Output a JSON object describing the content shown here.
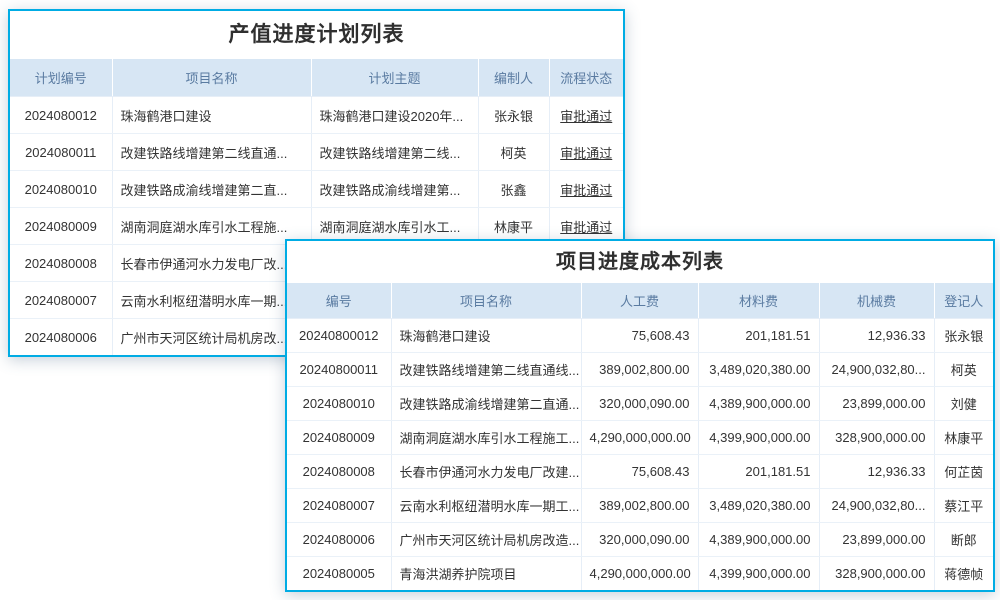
{
  "colors": {
    "card_border": "#00ace4",
    "header_bg": "#d7e6f4",
    "header_text": "#5a7ba1",
    "link_blue": "#3e96e2",
    "status_green": "#3aa83e",
    "money_text": "#333333"
  },
  "plan_table": {
    "title": "产值进度计划列表",
    "columns": [
      "计划编号",
      "项目名称",
      "计划主题",
      "编制人",
      "流程状态"
    ],
    "rows": [
      [
        "2024080012",
        "珠海鹤港口建设",
        "珠海鹤港口建设2020年...",
        "张永银",
        "审批通过"
      ],
      [
        "2024080011",
        "改建铁路线增建第二线直通...",
        "改建铁路线增建第二线...",
        "柯英",
        "审批通过"
      ],
      [
        "2024080010",
        "改建铁路成渝线增建第二直...",
        "改建铁路成渝线增建第...",
        "张鑫",
        "审批通过"
      ],
      [
        "2024080009",
        "湖南洞庭湖水库引水工程施...",
        "湖南洞庭湖水库引水工...",
        "林康平",
        "审批通过"
      ],
      [
        "2024080008",
        "长春市伊通河水力发电厂改...",
        "",
        "",
        ""
      ],
      [
        "2024080007",
        "云南水利枢纽潜明水库一期...",
        "",
        "",
        ""
      ],
      [
        "2024080006",
        "广州市天河区统计局机房改...",
        "",
        "",
        ""
      ]
    ]
  },
  "cost_table": {
    "title": "项目进度成本列表",
    "columns": [
      "编号",
      "项目名称",
      "人工费",
      "材料费",
      "机械费",
      "登记人"
    ],
    "rows": [
      [
        "20240800012",
        "珠海鹤港口建设",
        "75,608.43",
        "201,181.51",
        "12,936.33",
        "张永银"
      ],
      [
        "20240800011",
        "改建铁路线增建第二线直通线...",
        "389,002,800.00",
        "3,489,020,380.00",
        "24,900,032,80...",
        "柯英"
      ],
      [
        "2024080010",
        "改建铁路成渝线增建第二直通...",
        "320,000,090.00",
        "4,389,900,000.00",
        "23,899,000.00",
        "刘健"
      ],
      [
        "2024080009",
        "湖南洞庭湖水库引水工程施工...",
        "4,290,000,000.00",
        "4,399,900,000.00",
        "328,900,000.00",
        "林康平"
      ],
      [
        "2024080008",
        "长春市伊通河水力发电厂改建...",
        "75,608.43",
        "201,181.51",
        "12,936.33",
        "何芷茵"
      ],
      [
        "2024080007",
        "云南水利枢纽潜明水库一期工...",
        "389,002,800.00",
        "3,489,020,380.00",
        "24,900,032,80...",
        "蔡江平"
      ],
      [
        "2024080006",
        "广州市天河区统计局机房改造...",
        "320,000,090.00",
        "4,389,900,000.00",
        "23,899,000.00",
        "断郎"
      ],
      [
        "2024080005",
        "青海洪湖养护院项目",
        "4,290,000,000.00",
        "4,399,900,000.00",
        "328,900,000.00",
        "蒋德帧"
      ]
    ]
  }
}
